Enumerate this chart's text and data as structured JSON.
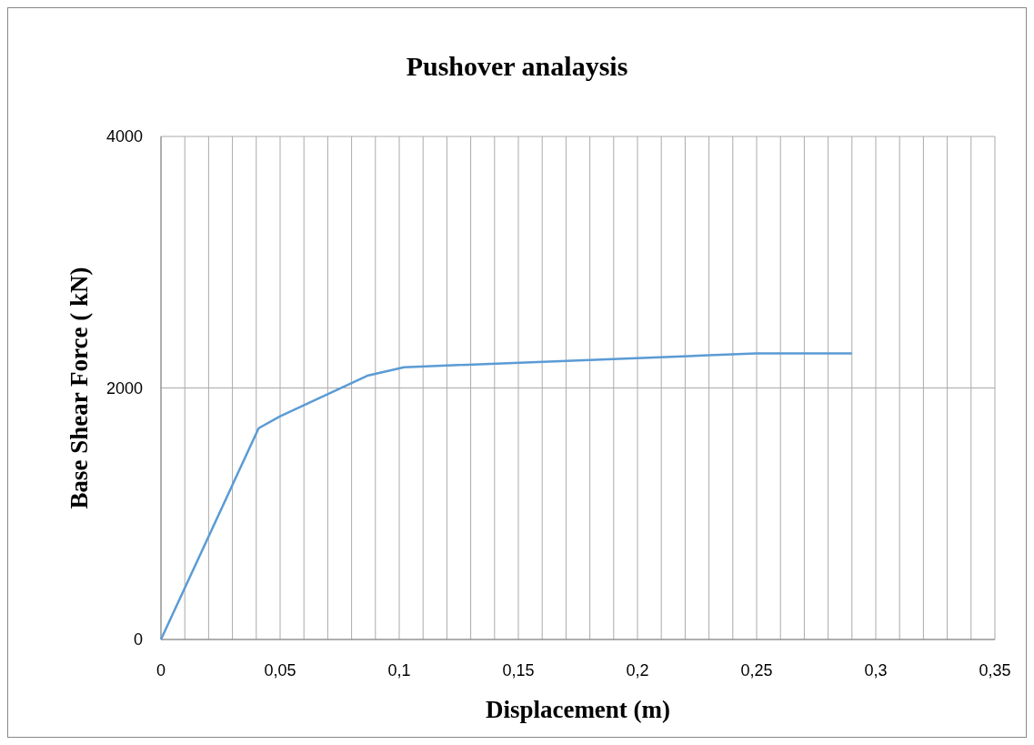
{
  "chart_data": {
    "type": "line",
    "title": "Pushover analaysis",
    "xlabel": "Displacement (m)",
    "ylabel": "Base Shear Force ( kN)",
    "x": [
      0,
      0.041,
      0.05,
      0.087,
      0.102,
      0.23,
      0.25,
      0.29
    ],
    "series": [
      {
        "color": "#5b9bd5",
        "values": [
          0,
          1680,
          1775,
          2100,
          2165,
          2260,
          2275,
          2275
        ]
      }
    ],
    "xlim": [
      0,
      0.35
    ],
    "ylim": [
      0,
      4000
    ],
    "xticks": [
      0,
      {
        "value": 0.01,
        "label": null
      },
      {
        "value": 0.02,
        "label": null
      },
      {
        "value": 0.03,
        "label": null
      },
      {
        "value": 0.04,
        "label": null
      },
      {
        "value": 0.05,
        "label": "0,05"
      },
      {
        "value": 0.06,
        "label": null
      },
      {
        "value": 0.07,
        "label": null
      },
      {
        "value": 0.08,
        "label": null
      },
      {
        "value": 0.09,
        "label": null
      },
      {
        "value": 0.1,
        "label": "0,1"
      },
      {
        "value": 0.11,
        "label": null
      },
      {
        "value": 0.12,
        "label": null
      },
      {
        "value": 0.13,
        "label": null
      },
      {
        "value": 0.14,
        "label": null
      },
      {
        "value": 0.15,
        "label": "0,15"
      },
      {
        "value": 0.16,
        "label": null
      },
      {
        "value": 0.17,
        "label": null
      },
      {
        "value": 0.18,
        "label": null
      },
      {
        "value": 0.19,
        "label": null
      },
      {
        "value": 0.2,
        "label": "0,2"
      },
      {
        "value": 0.21,
        "label": null
      },
      {
        "value": 0.22,
        "label": null
      },
      {
        "value": 0.23,
        "label": null
      },
      {
        "value": 0.24,
        "label": null
      },
      {
        "value": 0.25,
        "label": "0,25"
      },
      {
        "value": 0.26,
        "label": null
      },
      {
        "value": 0.27,
        "label": null
      },
      {
        "value": 0.28,
        "label": null
      },
      {
        "value": 0.29,
        "label": null
      },
      {
        "value": 0.3,
        "label": "0,3"
      },
      {
        "value": 0.31,
        "label": null
      },
      {
        "value": 0.32,
        "label": null
      },
      {
        "value": 0.33,
        "label": null
      },
      {
        "value": 0.34,
        "label": null
      },
      {
        "value": 0.35,
        "label": "0,35"
      }
    ],
    "yticks": [
      0,
      2000,
      4000
    ],
    "grid": true,
    "marker": "none",
    "line_style": "solid"
  }
}
